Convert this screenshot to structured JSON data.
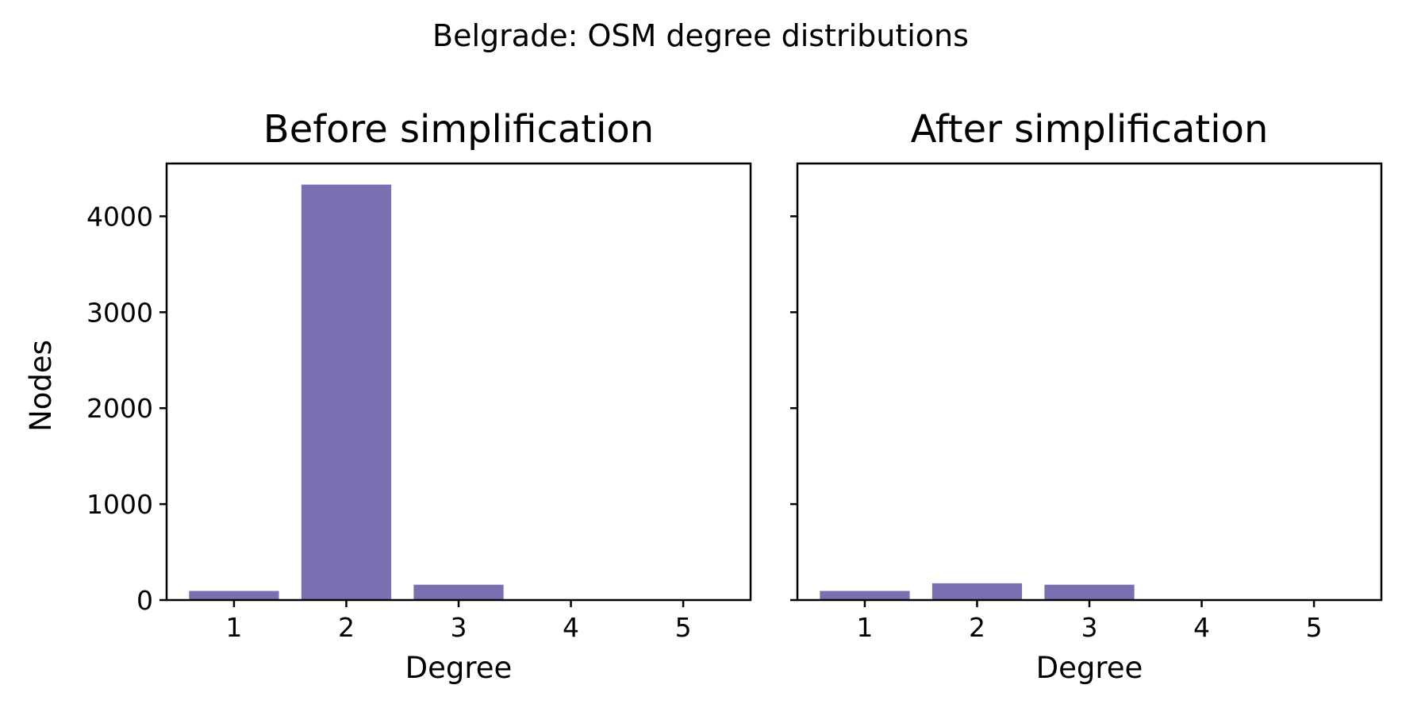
{
  "suptitle": "Belgrade: OSM degree distributions",
  "colors": {
    "bar": "#7870b0"
  },
  "chart_data": [
    {
      "type": "bar",
      "title": "Before simplification",
      "xlabel": "Degree",
      "ylabel": "Nodes",
      "categories": [
        "1",
        "2",
        "3",
        "4",
        "5"
      ],
      "values": [
        95,
        4330,
        160,
        0,
        0
      ],
      "ylim": [
        0,
        4550
      ],
      "yticks": [
        0,
        1000,
        2000,
        3000,
        4000
      ],
      "grid": false
    },
    {
      "type": "bar",
      "title": "After simplification",
      "xlabel": "Degree",
      "ylabel": "",
      "categories": [
        "1",
        "2",
        "3",
        "4",
        "5"
      ],
      "values": [
        95,
        175,
        160,
        0,
        0
      ],
      "ylim": [
        0,
        4550
      ],
      "yticks": [
        0,
        1000,
        2000,
        3000,
        4000
      ],
      "grid": false,
      "sharey": true
    }
  ]
}
